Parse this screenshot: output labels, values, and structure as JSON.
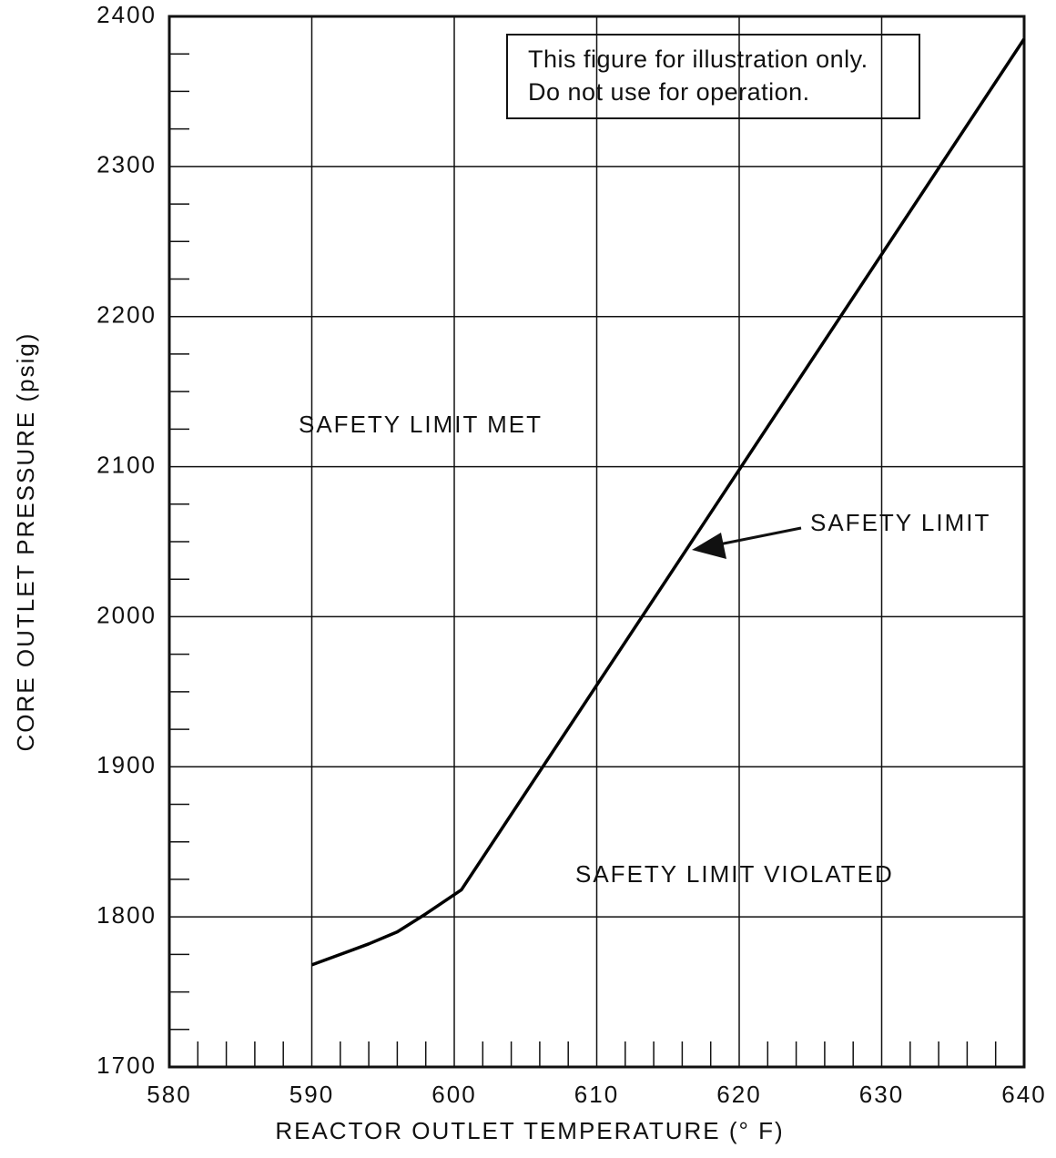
{
  "chart_data": {
    "type": "line",
    "xlabel": "REACTOR OUTLET TEMPERATURE (° F)",
    "ylabel": "CORE OUTLET PRESSURE (psig)",
    "x": [
      590,
      592,
      594,
      596,
      598,
      600.5,
      640
    ],
    "series": [
      {
        "name": "SAFETY LIMIT",
        "color": "#000000",
        "values": [
          1768,
          1775,
          1782,
          1790,
          1802,
          1818,
          2385
        ]
      }
    ],
    "xlim": [
      580,
      640
    ],
    "xticks": [
      580,
      590,
      600,
      610,
      620,
      630,
      640
    ],
    "ylim": [
      1700,
      2400
    ],
    "yticks": [
      1700,
      1800,
      1900,
      2000,
      2100,
      2200,
      2300,
      2400
    ],
    "grid": true,
    "note": [
      "This figure for illustration only.",
      "Do not use for operation."
    ],
    "annotations": [
      "SAFETY LIMIT MET",
      "SAFETY LIMIT",
      "SAFETY LIMIT VIOLATED"
    ]
  }
}
